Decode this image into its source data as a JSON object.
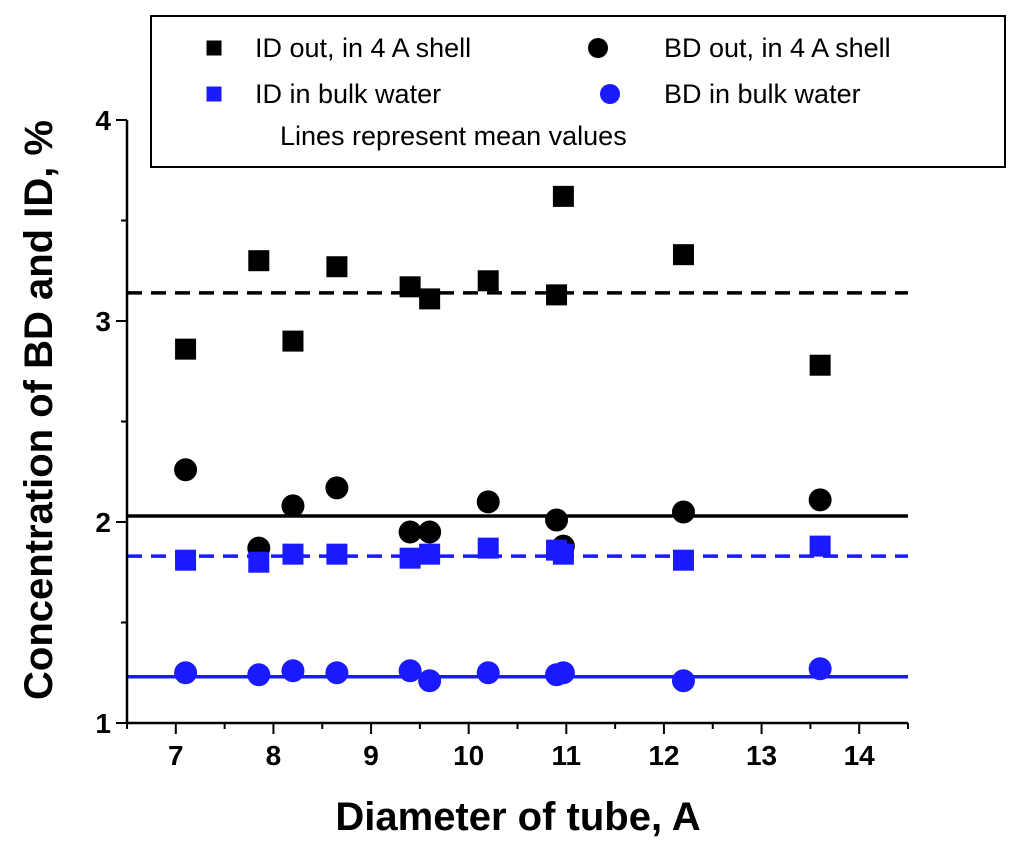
{
  "chart_data": {
    "type": "scatter",
    "title": "",
    "xlabel": "Diameter of tube, A",
    "ylabel": "Concentration of BD and ID, %",
    "xlim": [
      6.5,
      14.5
    ],
    "ylim": [
      1,
      4
    ],
    "xticks": [
      7,
      8,
      9,
      10,
      11,
      12,
      13,
      14
    ],
    "yticks": [
      1,
      2,
      3,
      4
    ],
    "grid": false,
    "legend_position": "top",
    "legend_note": "Lines represent mean values",
    "series": [
      {
        "name": "ID out, in 4 A shell",
        "marker": "square",
        "color": "#000000",
        "x": [
          7.1,
          7.85,
          8.2,
          8.65,
          9.4,
          9.6,
          10.2,
          10.9,
          10.97,
          12.2,
          13.6
        ],
        "y": [
          2.86,
          3.3,
          2.9,
          3.27,
          3.17,
          3.11,
          3.2,
          3.13,
          3.62,
          3.33,
          2.78
        ],
        "mean": 3.14,
        "mean_line_style": "dashed"
      },
      {
        "name": "BD out, in 4 A shell",
        "marker": "circle",
        "color": "#000000",
        "x": [
          7.1,
          7.85,
          8.2,
          8.65,
          9.4,
          9.6,
          10.2,
          10.9,
          10.97,
          12.2,
          13.6
        ],
        "y": [
          2.26,
          1.87,
          2.08,
          2.17,
          1.95,
          1.95,
          2.1,
          2.01,
          1.88,
          2.05,
          2.11
        ],
        "mean": 2.03,
        "mean_line_style": "solid"
      },
      {
        "name": "ID in bulk water",
        "marker": "square",
        "color": "#1a1aff",
        "x": [
          7.1,
          7.85,
          8.2,
          8.65,
          9.4,
          9.6,
          10.2,
          10.9,
          10.97,
          12.2,
          13.6
        ],
        "y": [
          1.81,
          1.8,
          1.84,
          1.84,
          1.82,
          1.84,
          1.87,
          1.86,
          1.84,
          1.81,
          1.88
        ],
        "mean": 1.83,
        "mean_line_style": "dashed"
      },
      {
        "name": "BD in bulk water",
        "marker": "circle",
        "color": "#1a1aff",
        "x": [
          7.1,
          7.85,
          8.2,
          8.65,
          9.4,
          9.6,
          10.2,
          10.9,
          10.97,
          12.2,
          13.6
        ],
        "y": [
          1.25,
          1.24,
          1.26,
          1.25,
          1.26,
          1.21,
          1.25,
          1.24,
          1.25,
          1.21,
          1.27
        ],
        "mean": 1.23,
        "mean_line_style": "solid"
      }
    ]
  }
}
